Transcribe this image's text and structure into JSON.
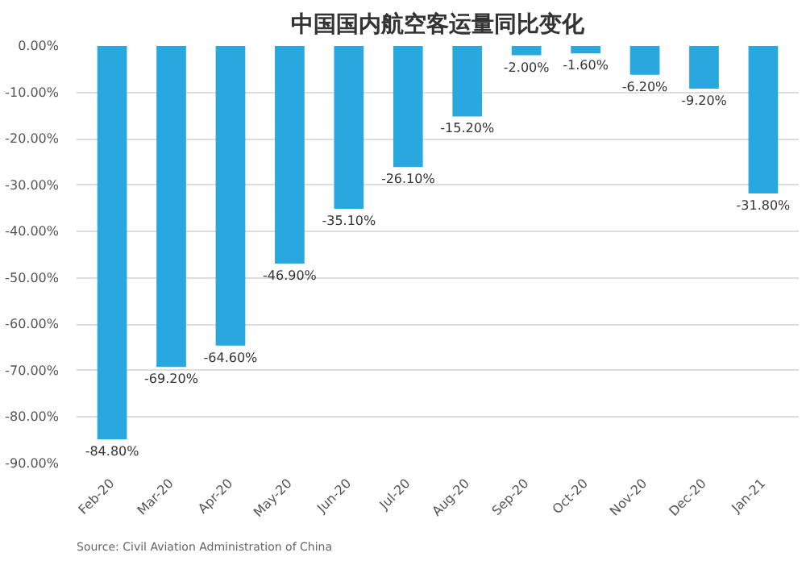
{
  "chart_data": {
    "type": "bar",
    "title": "中国国内航空客运量同比变化",
    "categories": [
      "Feb-20",
      "Mar-20",
      "Apr-20",
      "May-20",
      "Jun-20",
      "Jul-20",
      "Aug-20",
      "Sep-20",
      "Oct-20",
      "Nov-20",
      "Dec-20",
      "Jan-21"
    ],
    "values": [
      -84.8,
      -69.2,
      -64.6,
      -46.9,
      -35.1,
      -26.1,
      -15.2,
      -2.0,
      -1.6,
      -6.2,
      -9.2,
      -31.8
    ],
    "value_labels": [
      "-84.80%",
      "-69.20%",
      "-64.60%",
      "-46.90%",
      "-35.10%",
      "-26.10%",
      "-15.20%",
      "-2.00%",
      "-1.60%",
      "-6.20%",
      "-9.20%",
      "-31.80%"
    ],
    "color": "#29a8e0",
    "ylim": [
      -90,
      0
    ],
    "yticks": [
      {
        "value": 0,
        "label": "0.00%"
      },
      {
        "value": -10,
        "label": "-10.00%"
      },
      {
        "value": -20,
        "label": "-20.00%"
      },
      {
        "value": -30,
        "label": "-30.00%"
      },
      {
        "value": -40,
        "label": "-40.00%"
      },
      {
        "value": -50,
        "label": "-50.00%"
      },
      {
        "value": -60,
        "label": "-60.00%"
      },
      {
        "value": -70,
        "label": "-70.00%"
      },
      {
        "value": -80,
        "label": "-80.00%"
      },
      {
        "value": -90,
        "label": "-90.00%"
      }
    ],
    "grid": "y",
    "annotations": [
      "Source: Civil Aviation Administration of China"
    ]
  }
}
